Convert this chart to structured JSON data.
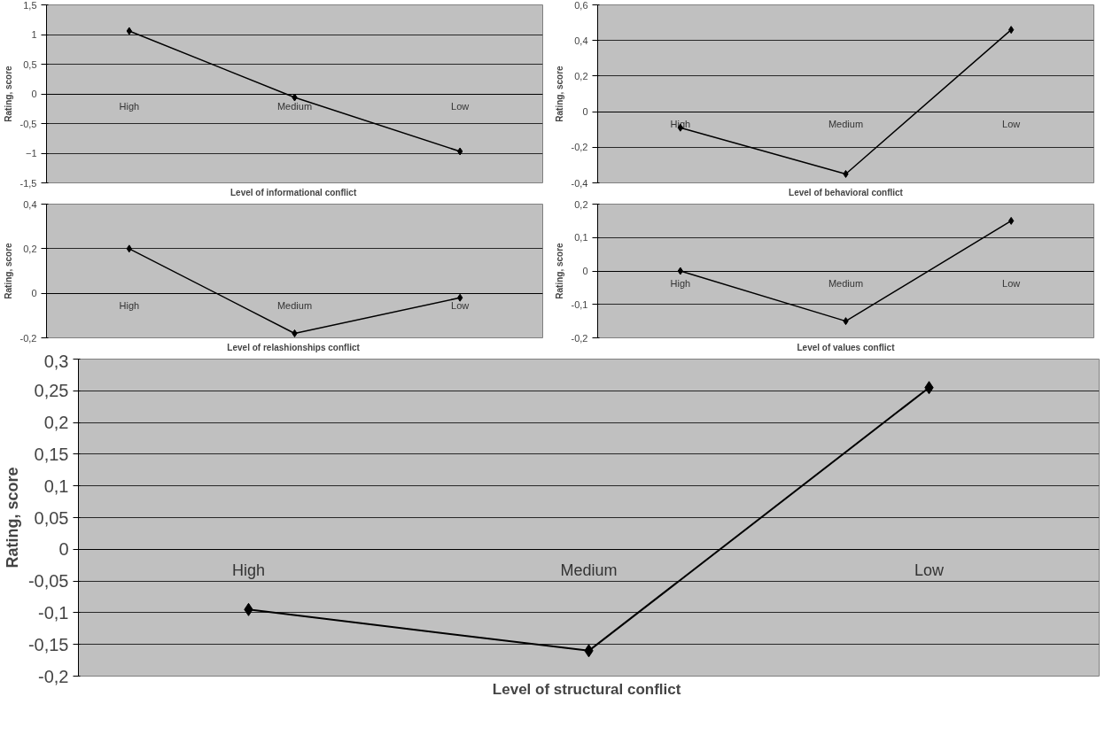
{
  "chart_data": [
    {
      "type": "line",
      "categories": [
        "High",
        "Medium",
        "Low"
      ],
      "values": [
        1.06,
        -0.06,
        -0.97
      ],
      "color": "#000000",
      "marker": "diamond",
      "line_style": "solid",
      "grid": "y",
      "xlabel": "Level of informational  conflict",
      "ylabel": "Rating, score",
      "ylim": [
        -1.5,
        1.5
      ],
      "yticks": [
        {
          "value": -1.5,
          "label": "-1,5"
        },
        -1,
        {
          "value": -0.5,
          "label": "-0,5"
        },
        0,
        {
          "value": 0.5,
          "label": "0,5"
        },
        1,
        {
          "value": 1.5,
          "label": "1,5"
        }
      ]
    },
    {
      "type": "line",
      "categories": [
        "High",
        "Medium",
        "Low"
      ],
      "values": [
        -0.09,
        -0.35,
        0.46
      ],
      "color": "#000000",
      "marker": "diamond",
      "line_style": "solid",
      "grid": "y",
      "xlabel": "Level of behavioral conflict",
      "ylabel": "Rating, score",
      "ylim": [
        -0.4,
        0.6
      ],
      "yticks": [
        {
          "value": -0.4,
          "label": "-0,4"
        },
        {
          "value": -0.2,
          "label": "-0,2"
        },
        0,
        {
          "value": 0.2,
          "label": "0,2"
        },
        {
          "value": 0.4,
          "label": "0,4"
        },
        {
          "value": 0.6,
          "label": "0,6"
        }
      ]
    },
    {
      "type": "line",
      "categories": [
        "High",
        "Medium",
        "Low"
      ],
      "values": [
        0.2,
        -0.18,
        -0.02
      ],
      "color": "#000000",
      "marker": "diamond",
      "line_style": "solid",
      "grid": "y",
      "xlabel": "Level of relashionships  conflict",
      "ylabel": "Rating, score",
      "ylim": [
        -0.2,
        0.4
      ],
      "yticks": [
        {
          "value": -0.2,
          "label": "-0,2"
        },
        0,
        {
          "value": 0.2,
          "label": "0,2"
        },
        {
          "value": 0.4,
          "label": "0,4"
        }
      ]
    },
    {
      "type": "line",
      "categories": [
        "High",
        "Medium",
        "Low"
      ],
      "values": [
        0,
        -0.15,
        0.15
      ],
      "color": "#000000",
      "marker": "diamond",
      "line_style": "solid",
      "grid": "y",
      "xlabel": "Level of values conflict",
      "ylabel": "Rating, score",
      "ylim": [
        -0.2,
        0.2
      ],
      "yticks": [
        {
          "value": -0.2,
          "label": "-0,2"
        },
        {
          "value": -0.1,
          "label": "-0,1"
        },
        0,
        {
          "value": 0.1,
          "label": "0,1"
        },
        {
          "value": 0.2,
          "label": "0,2"
        }
      ]
    },
    {
      "type": "line",
      "categories": [
        "High",
        "Medium",
        "Low"
      ],
      "values": [
        -0.095,
        -0.16,
        0.255
      ],
      "color": "#000000",
      "marker": "diamond",
      "line_style": "solid",
      "grid": "y",
      "xlabel": "Level  of structural conflict",
      "ylabel": "Rating, score",
      "ylim": [
        -0.2,
        0.3
      ],
      "yticks": [
        {
          "value": -0.2,
          "label": "-0,2"
        },
        {
          "value": -0.15,
          "label": "-0,15"
        },
        {
          "value": -0.1,
          "label": "-0,1"
        },
        {
          "value": -0.05,
          "label": "-0,05"
        },
        0,
        {
          "value": 0.05,
          "label": "0,05"
        },
        {
          "value": 0.1,
          "label": "0,1"
        },
        {
          "value": 0.15,
          "label": "0,15"
        },
        {
          "value": 0.2,
          "label": "0,2"
        },
        {
          "value": 0.25,
          "label": "0,25"
        },
        {
          "value": 0.3,
          "label": "0,3"
        }
      ]
    }
  ]
}
